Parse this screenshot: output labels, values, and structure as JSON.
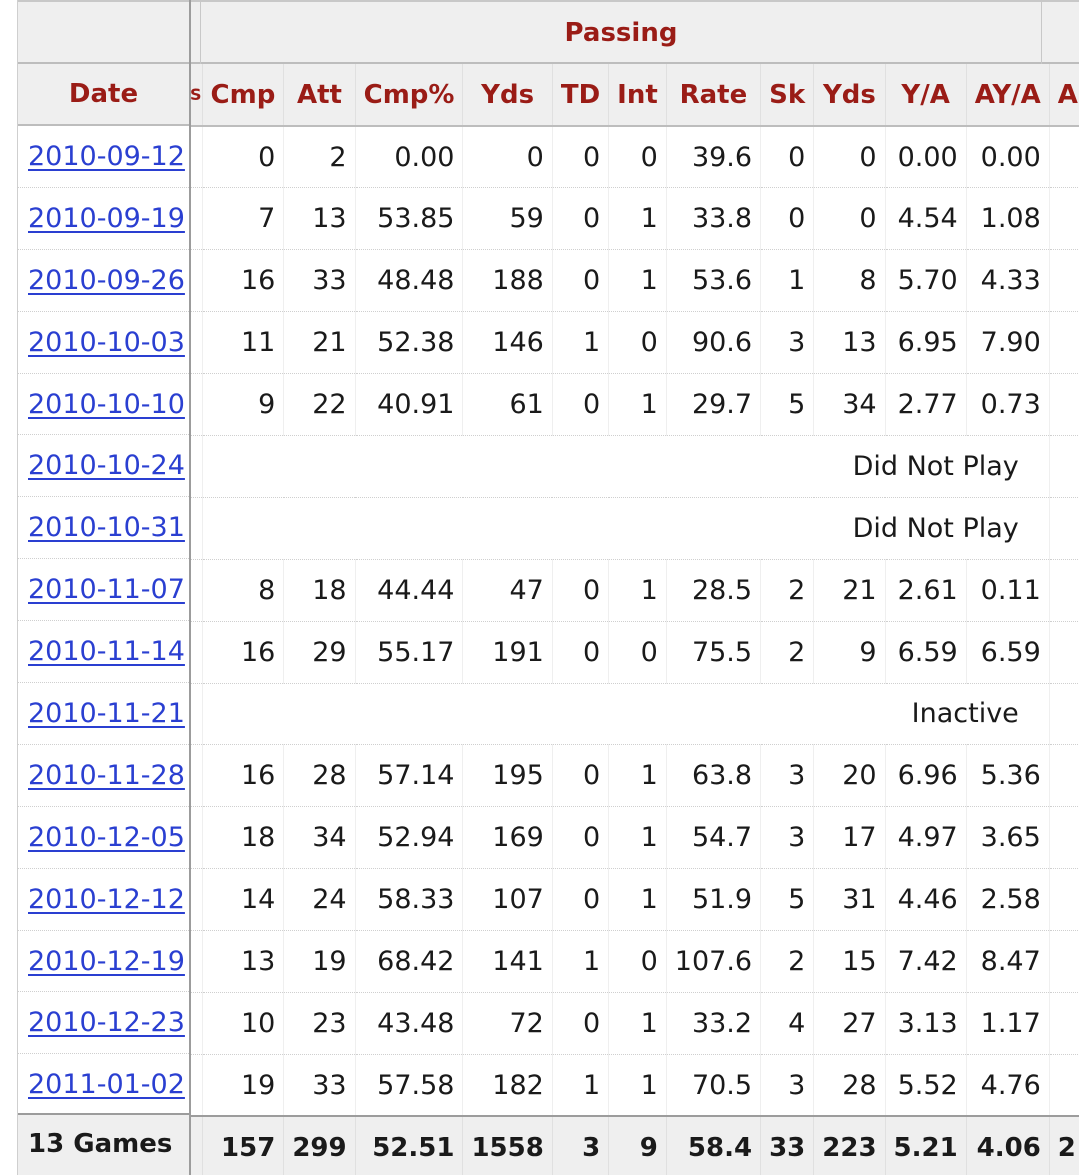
{
  "group_header": "Passing",
  "date_header": "Date",
  "columns": [
    "Cmp",
    "Att",
    "Cmp%",
    "Yds",
    "TD",
    "Int",
    "Rate",
    "Sk",
    "Yds",
    "Y/A",
    "AY/A",
    "A"
  ],
  "cut_left_header": "S",
  "rows": [
    {
      "date": "2010-09-12",
      "stats": [
        "0",
        "2",
        "0.00",
        "0",
        "0",
        "0",
        "39.6",
        "0",
        "0",
        "0.00",
        "0.00"
      ]
    },
    {
      "date": "2010-09-19",
      "stats": [
        "7",
        "13",
        "53.85",
        "59",
        "0",
        "1",
        "33.8",
        "0",
        "0",
        "4.54",
        "1.08"
      ]
    },
    {
      "date": "2010-09-26",
      "stats": [
        "16",
        "33",
        "48.48",
        "188",
        "0",
        "1",
        "53.6",
        "1",
        "8",
        "5.70",
        "4.33"
      ]
    },
    {
      "date": "2010-10-03",
      "stats": [
        "11",
        "21",
        "52.38",
        "146",
        "1",
        "0",
        "90.6",
        "3",
        "13",
        "6.95",
        "7.90"
      ]
    },
    {
      "date": "2010-10-10",
      "stats": [
        "9",
        "22",
        "40.91",
        "61",
        "0",
        "1",
        "29.7",
        "5",
        "34",
        "2.77",
        "0.73"
      ]
    },
    {
      "date": "2010-10-24",
      "note": "Did Not Play"
    },
    {
      "date": "2010-10-31",
      "note": "Did Not Play"
    },
    {
      "date": "2010-11-07",
      "stats": [
        "8",
        "18",
        "44.44",
        "47",
        "0",
        "1",
        "28.5",
        "2",
        "21",
        "2.61",
        "0.11"
      ]
    },
    {
      "date": "2010-11-14",
      "stats": [
        "16",
        "29",
        "55.17",
        "191",
        "0",
        "0",
        "75.5",
        "2",
        "9",
        "6.59",
        "6.59"
      ]
    },
    {
      "date": "2010-11-21",
      "note": "Inactive"
    },
    {
      "date": "2010-11-28",
      "stats": [
        "16",
        "28",
        "57.14",
        "195",
        "0",
        "1",
        "63.8",
        "3",
        "20",
        "6.96",
        "5.36"
      ]
    },
    {
      "date": "2010-12-05",
      "stats": [
        "18",
        "34",
        "52.94",
        "169",
        "0",
        "1",
        "54.7",
        "3",
        "17",
        "4.97",
        "3.65"
      ]
    },
    {
      "date": "2010-12-12",
      "stats": [
        "14",
        "24",
        "58.33",
        "107",
        "0",
        "1",
        "51.9",
        "5",
        "31",
        "4.46",
        "2.58"
      ]
    },
    {
      "date": "2010-12-19",
      "stats": [
        "13",
        "19",
        "68.42",
        "141",
        "1",
        "0",
        "107.6",
        "2",
        "15",
        "7.42",
        "8.47"
      ]
    },
    {
      "date": "2010-12-23",
      "stats": [
        "10",
        "23",
        "43.48",
        "72",
        "0",
        "1",
        "33.2",
        "4",
        "27",
        "3.13",
        "1.17"
      ]
    },
    {
      "date": "2011-01-02",
      "stats": [
        "19",
        "33",
        "57.58",
        "182",
        "1",
        "1",
        "70.5",
        "3",
        "28",
        "5.52",
        "4.76"
      ]
    }
  ],
  "totals": {
    "label": "13 Games",
    "stats": [
      "157",
      "299",
      "52.51",
      "1558",
      "3",
      "9",
      "58.4",
      "33",
      "223",
      "5.21",
      "4.06",
      "2"
    ]
  }
}
